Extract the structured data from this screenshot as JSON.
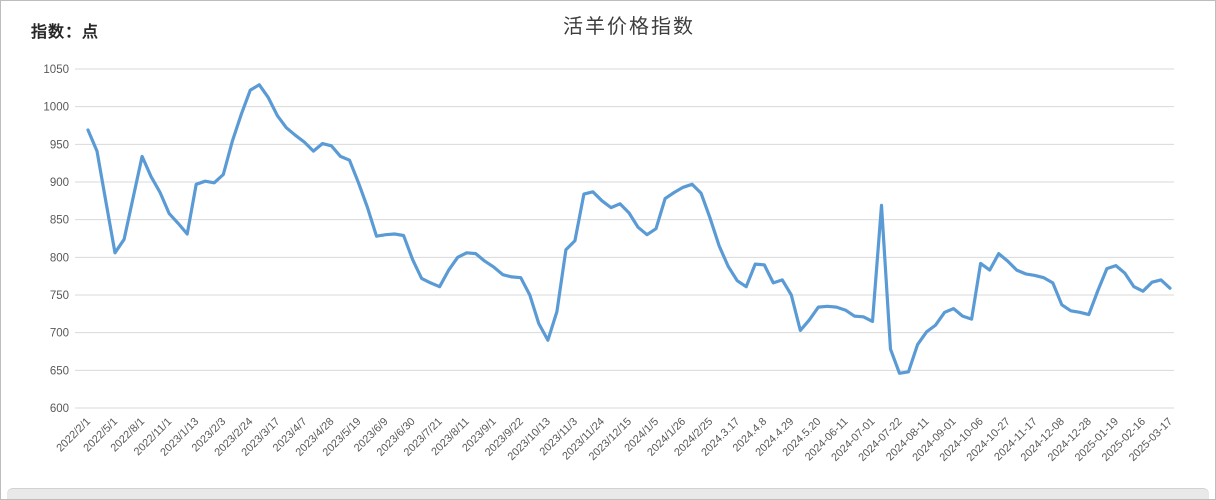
{
  "header": {
    "y_axis_unit": "指数：点"
  },
  "chart_data": {
    "type": "line",
    "title": "活羊价格指数",
    "ylabel": "指数：点",
    "xlabel": "",
    "ylim": [
      600,
      1050
    ],
    "y_ticks": [
      600,
      650,
      700,
      750,
      800,
      850,
      900,
      950,
      1000,
      1050
    ],
    "grid": "horizontal",
    "legend_position": "none",
    "line_color": "#5B9BD5",
    "gridline_color": "#D9D9D9",
    "tick_label_color": "#595959",
    "label_every_n_points": 3,
    "categories": [
      "2022/2/1",
      "2022/5/1",
      "2022/8/1",
      "2022/11/1",
      "2023/1/13",
      "2023/2/3",
      "2023/2/24",
      "2023/3/17",
      "2023/4/7",
      "2023/4/28",
      "2023/5/19",
      "2023/6/9",
      "2023/6/30",
      "2023/7/21",
      "2023/8/11",
      "2023/9/1",
      "2023/9/22",
      "2023/10/13",
      "2023/11/3",
      "2023/11/24",
      "2023/12/15",
      "2024/1/5",
      "2024/1/26",
      "2024/2/25",
      "2024.3.17",
      "2024.4.8",
      "2024.4.29",
      "2024.5.20",
      "2024-06-11",
      "2024-07-01",
      "2024-07-22",
      "2024-08-11",
      "2024-09-01",
      "2024-10-06",
      "2024-10-27",
      "2024-11-17",
      "2024-12-08",
      "2024-12-28",
      "2025-01-19",
      "2025-02-16",
      "2025-03-17"
    ],
    "values": [
      969,
      941,
      873,
      806,
      824,
      879,
      934,
      907,
      886,
      858,
      845,
      831,
      897,
      901,
      899,
      910,
      954,
      990,
      1022,
      1029,
      1012,
      988,
      972,
      962,
      953,
      941,
      951,
      948,
      934,
      929,
      899,
      866,
      828,
      830,
      831,
      829,
      797,
      772,
      766,
      761,
      783,
      800,
      806,
      805,
      795,
      787,
      777,
      774,
      773,
      750,
      712,
      690,
      728,
      810,
      822,
      884,
      887,
      875,
      866,
      871,
      859,
      840,
      830,
      838,
      878,
      886,
      893,
      897,
      885,
      852,
      815,
      788,
      769,
      761,
      791,
      790,
      766,
      770,
      750,
      703,
      717,
      734,
      735,
      734,
      730,
      722,
      721,
      715,
      869,
      678,
      646,
      648,
      684,
      701,
      710,
      727,
      732,
      722,
      718,
      792,
      783,
      805,
      795,
      783,
      778,
      776,
      773,
      766,
      737,
      729,
      727,
      724,
      756,
      785,
      789,
      779,
      761,
      755,
      767,
      770,
      759
    ]
  }
}
